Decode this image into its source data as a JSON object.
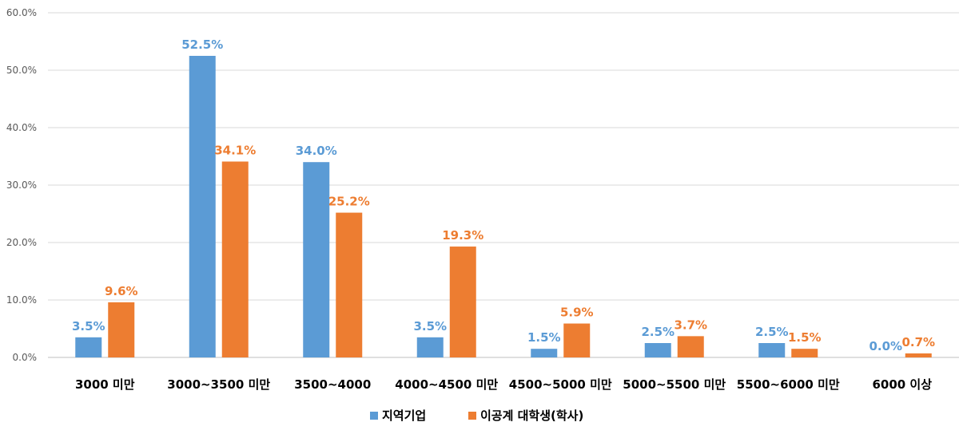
{
  "chart_data": {
    "type": "bar",
    "title": "",
    "xlabel": "",
    "ylabel": "",
    "ylim": [
      0,
      60
    ],
    "yticks": [
      "0.0%",
      "10.0%",
      "20.0%",
      "30.0%",
      "40.0%",
      "50.0%",
      "60.0%"
    ],
    "grid": true,
    "legend_position": "bottom",
    "categories": [
      "3000 미만",
      "3000~3500 미만",
      "3500~4000",
      "4000~4500 미만",
      "4500~5000 미만",
      "5000~5500 미만",
      "5500~6000 미만",
      "6000 이상"
    ],
    "series": [
      {
        "name": "지역기업",
        "color": "#5B9BD5",
        "values": [
          3.5,
          52.5,
          34.0,
          3.5,
          1.5,
          2.5,
          2.5,
          0.0
        ],
        "labels": [
          "3.5%",
          "52.5%",
          "34.0%",
          "3.5%",
          "1.5%",
          "2.5%",
          "2.5%",
          "0.0%"
        ]
      },
      {
        "name": "이공계 대학생(학사)",
        "color": "#ED7D31",
        "values": [
          9.6,
          34.1,
          25.2,
          19.3,
          5.9,
          3.7,
          1.5,
          0.7
        ],
        "labels": [
          "9.6%",
          "34.1%",
          "25.2%",
          "19.3%",
          "5.9%",
          "3.7%",
          "1.5%",
          "0.7%"
        ]
      }
    ]
  }
}
